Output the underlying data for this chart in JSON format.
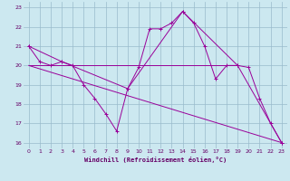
{
  "xlabel": "Windchill (Refroidissement éolien,°C)",
  "xlim": [
    -0.5,
    23.5
  ],
  "ylim": [
    15.7,
    23.3
  ],
  "yticks": [
    16,
    17,
    18,
    19,
    20,
    21,
    22,
    23
  ],
  "xticks": [
    0,
    1,
    2,
    3,
    4,
    5,
    6,
    7,
    8,
    9,
    10,
    11,
    12,
    13,
    14,
    15,
    16,
    17,
    18,
    19,
    20,
    21,
    22,
    23
  ],
  "bg_color": "#cce8f0",
  "line_color": "#990099",
  "grid_color": "#99bbcc",
  "series": [
    {
      "x": [
        0,
        1,
        2,
        3,
        4,
        5,
        6,
        7,
        8,
        9,
        10,
        11,
        12,
        13,
        14,
        15,
        16,
        17,
        18,
        19,
        20,
        21,
        22,
        23
      ],
      "y": [
        21,
        20.2,
        20,
        20.2,
        20,
        19,
        18.3,
        17.5,
        16.6,
        18.8,
        19.9,
        21.9,
        21.9,
        22.2,
        22.8,
        22.2,
        21,
        19.3,
        20,
        20,
        19.9,
        18.3,
        17,
        16
      ]
    },
    {
      "x": [
        0,
        3,
        9,
        14,
        19,
        23
      ],
      "y": [
        21,
        20.2,
        18.8,
        22.8,
        20,
        16
      ]
    },
    {
      "x": [
        0,
        19
      ],
      "y": [
        20,
        20
      ]
    },
    {
      "x": [
        0,
        23
      ],
      "y": [
        20,
        16
      ]
    }
  ]
}
